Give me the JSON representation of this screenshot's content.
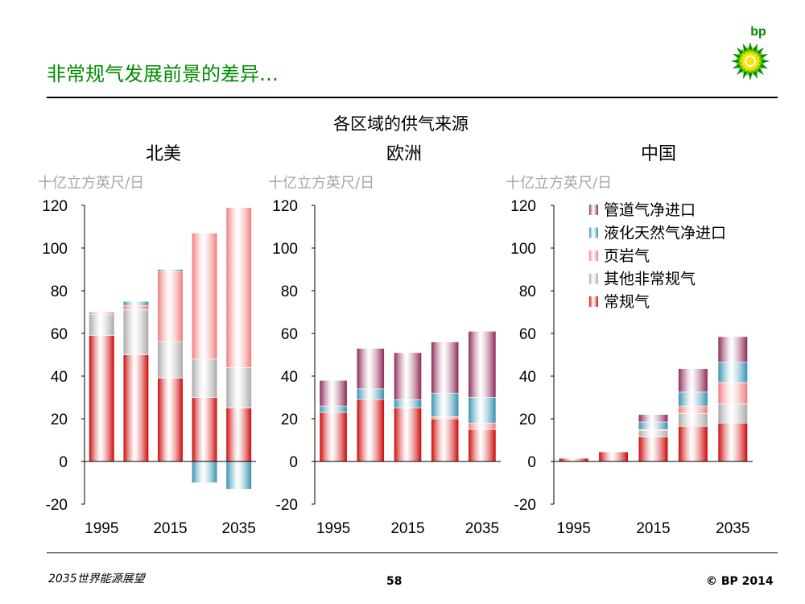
{
  "slide": {
    "title": "非常规气发展前景的差异…",
    "footer_left": "2035世界能源展望",
    "page_number": "58",
    "copyright": "© BP 2014",
    "logo_text": "bp"
  },
  "chart_data": {
    "type": "bar",
    "stacked": true,
    "title": "各区域的供气来源",
    "ylabel": "十亿立方英尺/日",
    "ylim": [
      -20,
      120
    ],
    "yticks": [
      -20,
      0,
      20,
      40,
      60,
      80,
      100,
      120
    ],
    "x": [
      1995,
      2005,
      2015,
      2025,
      2035
    ],
    "xtick_labels": [
      "1995",
      "2015",
      "2035"
    ],
    "xtick_years": [
      1995,
      2015,
      2035
    ],
    "legend": [
      "管道气净进口",
      "液化天然气净进口",
      "页岩气",
      "其他非常规气",
      "常规气"
    ],
    "legend_position": "top-right of third panel",
    "colors": {
      "pipeline": "#8b2252",
      "lng": "#2f8fb0",
      "shale": "#f07878",
      "other": "#a6a6a6",
      "conventional": "#cc0000"
    },
    "panels": [
      {
        "name": "北美",
        "series": [
          {
            "key": "conventional",
            "name": "常规气",
            "values": [
              59,
              50,
              39,
              30,
              25
            ]
          },
          {
            "key": "other",
            "name": "其他非常规气",
            "values": [
              10,
              21,
              17,
              18,
              19
            ]
          },
          {
            "key": "shale",
            "name": "页岩气",
            "values": [
              1,
              2,
              33,
              59,
              75
            ]
          },
          {
            "key": "lng",
            "name": "液化天然气净进口",
            "values": [
              0,
              2,
              1,
              -10,
              -13
            ]
          },
          {
            "key": "pipeline",
            "name": "管道气净进口",
            "values": [
              0,
              0,
              0,
              0,
              0
            ]
          }
        ]
      },
      {
        "name": "欧洲",
        "series": [
          {
            "key": "conventional",
            "name": "常规气",
            "values": [
              23,
              29,
              25,
              20,
              15
            ]
          },
          {
            "key": "other",
            "name": "其他非常规气",
            "values": [
              0,
              0,
              0,
              0,
              0
            ]
          },
          {
            "key": "shale",
            "name": "页岩气",
            "values": [
              0,
              0,
              0,
              1,
              3
            ]
          },
          {
            "key": "lng",
            "name": "液化天然气净进口",
            "values": [
              3,
              5,
              4,
              11,
              12
            ]
          },
          {
            "key": "pipeline",
            "name": "管道气净进口",
            "values": [
              12,
              19,
              22,
              24,
              31
            ]
          }
        ]
      },
      {
        "name": "中国",
        "series": [
          {
            "key": "conventional",
            "name": "常规气",
            "values": [
              1.5,
              4.5,
              11.5,
              16.5,
              18
            ]
          },
          {
            "key": "other",
            "name": "其他非常规气",
            "values": [
              0,
              0,
              3,
              6,
              9
            ]
          },
          {
            "key": "shale",
            "name": "页岩气",
            "values": [
              0,
              0,
              0.5,
              3.5,
              10
            ]
          },
          {
            "key": "lng",
            "name": "液化天然气净进口",
            "values": [
              0,
              0,
              3.5,
              6.5,
              9.5
            ]
          },
          {
            "key": "pipeline",
            "name": "管道气净进口",
            "values": [
              0,
              0,
              3.5,
              11,
              12
            ]
          }
        ]
      }
    ]
  }
}
